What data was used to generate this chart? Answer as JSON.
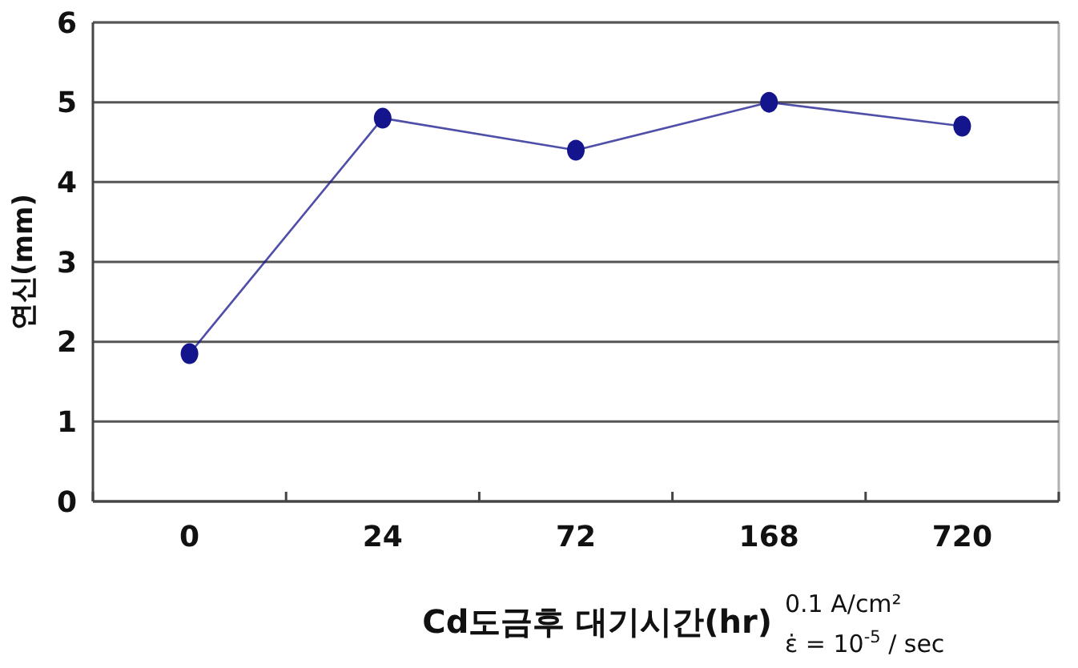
{
  "chart_data": {
    "type": "line",
    "xlabel": "Cd도금후 대기시간(hr)",
    "ylabel": "연신(mm)",
    "categories": [
      "0",
      "24",
      "72",
      "168",
      "720"
    ],
    "series": [
      {
        "color": "#14148c",
        "values": [
          1.85,
          4.8,
          4.4,
          5.0,
          4.7
        ]
      }
    ],
    "ylim": [
      0,
      6
    ],
    "yticks": [
      0,
      1,
      2,
      3,
      4,
      5,
      6
    ],
    "grid": "y",
    "marker": "circle",
    "line_style": "solid",
    "annotations": [
      "0.1 A/cm²",
      "ε̇ = 10$^{-5}$ / sec"
    ]
  }
}
